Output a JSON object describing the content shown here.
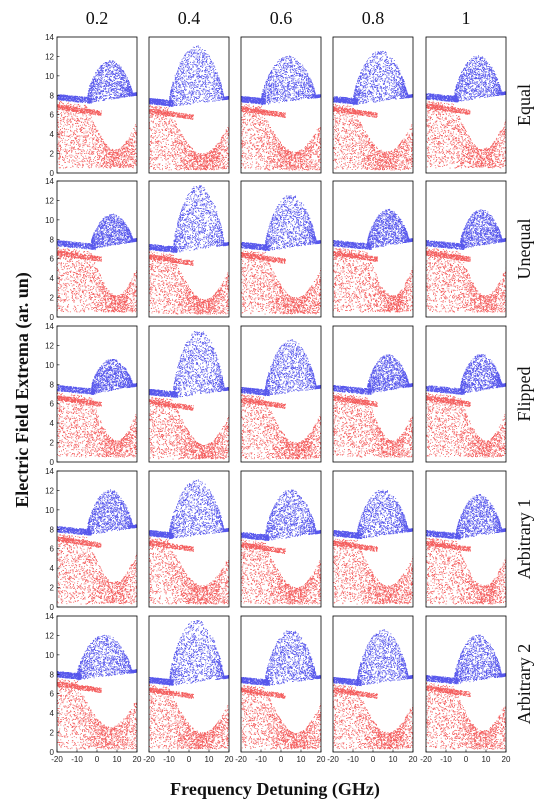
{
  "colors": {
    "upper": "#1f1fe6",
    "lower": "#f01a1a",
    "frame": "#000000"
  },
  "figure": {
    "column_titles": [
      "0.2",
      "0.4",
      "0.6",
      "0.8",
      "1"
    ],
    "row_titles": [
      "Equal",
      "Unequal",
      "Flipped",
      "Arbitrary 1",
      "Arbitrary 2"
    ],
    "xlabel": "Frequency Detuning (GHz)",
    "ylabel": "Electric Field Extrema (ar. un)"
  },
  "chart_data": {
    "type": "scatter",
    "layout": "grid of 5 rows by 5 columns of bifurcation diagrams",
    "xlim": [
      -20,
      20
    ],
    "ylim": [
      0,
      14
    ],
    "x_ticks": [
      "-20",
      "-10",
      "0",
      "10",
      "20"
    ],
    "y_ticks": [
      "0",
      "2",
      "4",
      "6",
      "8",
      "10",
      "12",
      "14"
    ],
    "series": [
      {
        "color": "#1f1fe6"
      },
      {
        "color": "#f01a1a"
      }
    ],
    "rows": [
      {
        "name": "Equal",
        "panels": [
          {
            "col": "0.2",
            "upper_onset": -5,
            "upper_max": 11,
            "lower_dip": 0.5,
            "band": 7.4
          },
          {
            "col": "0.4",
            "upper_onset": -10,
            "upper_max": 12.5,
            "lower_dip": 0.3,
            "band": 7.0
          },
          {
            "col": "0.6",
            "upper_onset": -10,
            "upper_max": 11.5,
            "lower_dip": 0.3,
            "band": 7.2
          },
          {
            "col": "0.8",
            "upper_onset": -10,
            "upper_max": 12,
            "lower_dip": 0.3,
            "band": 7.2
          },
          {
            "col": "1",
            "upper_onset": -6,
            "upper_max": 11.5,
            "lower_dip": 0.5,
            "band": 7.5
          }
        ]
      },
      {
        "name": "Unequal",
        "panels": [
          {
            "col": "0.2",
            "upper_onset": -3,
            "upper_max": 10,
            "lower_dip": 0.5,
            "band": 7.2
          },
          {
            "col": "0.4",
            "upper_onset": -8,
            "upper_max": 13,
            "lower_dip": 0.3,
            "band": 6.8
          },
          {
            "col": "0.6",
            "upper_onset": -8,
            "upper_max": 12,
            "lower_dip": 0.3,
            "band": 7.0
          },
          {
            "col": "0.8",
            "upper_onset": -3,
            "upper_max": 10.5,
            "lower_dip": 0.5,
            "band": 7.2
          },
          {
            "col": "1",
            "upper_onset": -3,
            "upper_max": 10.5,
            "lower_dip": 0.5,
            "band": 7.2
          }
        ]
      },
      {
        "name": "Flipped",
        "panels": [
          {
            "col": "0.2",
            "upper_onset": -3,
            "upper_max": 10,
            "lower_dip": 0.5,
            "band": 7.2
          },
          {
            "col": "0.4",
            "upper_onset": -8,
            "upper_max": 13,
            "lower_dip": 0.3,
            "band": 6.8
          },
          {
            "col": "0.6",
            "upper_onset": -8,
            "upper_max": 12,
            "lower_dip": 0.3,
            "band": 7.0
          },
          {
            "col": "0.8",
            "upper_onset": -3,
            "upper_max": 10.5,
            "lower_dip": 0.5,
            "band": 7.2
          },
          {
            "col": "1",
            "upper_onset": -3,
            "upper_max": 10.5,
            "lower_dip": 0.5,
            "band": 7.2
          }
        ]
      },
      {
        "name": "Arbitrary 1",
        "panels": [
          {
            "col": "0.2",
            "upper_onset": -5,
            "upper_max": 11.5,
            "lower_dip": 0.3,
            "band": 7.6
          },
          {
            "col": "0.4",
            "upper_onset": -10,
            "upper_max": 12.5,
            "lower_dip": 0.3,
            "band": 7.2
          },
          {
            "col": "0.6",
            "upper_onset": -8,
            "upper_max": 11.5,
            "lower_dip": 0.3,
            "band": 7.0
          },
          {
            "col": "0.8",
            "upper_onset": -8,
            "upper_max": 11.5,
            "lower_dip": 0.3,
            "band": 7.2
          },
          {
            "col": "1",
            "upper_onset": -5,
            "upper_max": 11,
            "lower_dip": 0.3,
            "band": 7.2
          }
        ]
      },
      {
        "name": "Arbitrary 2",
        "panels": [
          {
            "col": "0.2",
            "upper_onset": -10,
            "upper_max": 11.5,
            "lower_dip": 0.3,
            "band": 7.6
          },
          {
            "col": "0.4",
            "upper_onset": -10,
            "upper_max": 13,
            "lower_dip": 0.3,
            "band": 7.0
          },
          {
            "col": "0.6",
            "upper_onset": -8,
            "upper_max": 12,
            "lower_dip": 0.3,
            "band": 7.0
          },
          {
            "col": "0.8",
            "upper_onset": -8,
            "upper_max": 12,
            "lower_dip": 0.3,
            "band": 7.0
          },
          {
            "col": "1",
            "upper_onset": -6,
            "upper_max": 11.5,
            "lower_dip": 0.3,
            "band": 7.2
          }
        ]
      }
    ]
  }
}
